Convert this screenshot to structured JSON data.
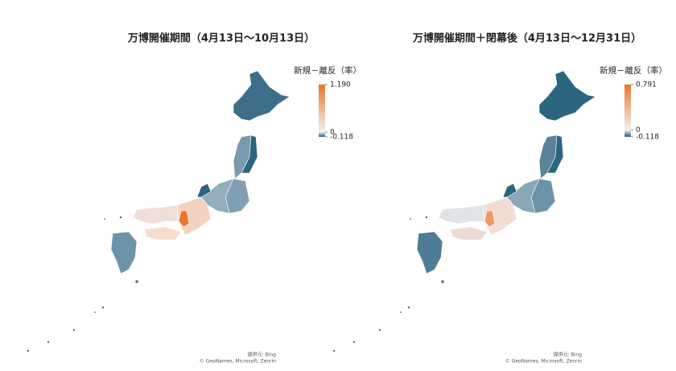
{
  "panels": [
    {
      "title": "万博開催期間（4月13日～10月13日）",
      "legend": {
        "title": "新規－離反（率）",
        "ticks": [
          {
            "value": 1.19,
            "label": "1.190"
          },
          0,
          -0.118
        ]
      },
      "attribution": [
        "提供元: Bing",
        "© GeoNames, Microsoft, Zenrin"
      ]
    },
    {
      "title": "万博開催期間＋閉幕後（4月13日～12月31日）",
      "legend": {
        "title": "新規－離反（率）",
        "ticks": [
          0.791,
          0,
          -0.118
        ]
      },
      "attribution": [
        "提供元: Bing",
        "© GeoNames, Microsoft, Zenrin"
      ]
    }
  ]
}
